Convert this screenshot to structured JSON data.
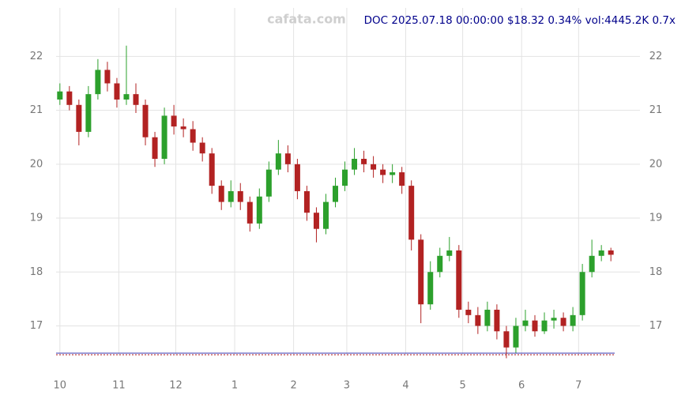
{
  "watermark": "cafata.com",
  "chart_data": {
    "type": "candlestick",
    "title": "DOC 2025.07.18 00:00:00 $18.32 0.34% vol:4445.2K 0.7x",
    "x": [
      0,
      5,
      10,
      15,
      20,
      25,
      30,
      35,
      40,
      45,
      50,
      55,
      60,
      65,
      70,
      75,
      80,
      85,
      90,
      95,
      100,
      105,
      110,
      115,
      120,
      125,
      130,
      135,
      140,
      145,
      150,
      155,
      160,
      165,
      170,
      175,
      180,
      185,
      190,
      195,
      200,
      205,
      210,
      215,
      220,
      225,
      230,
      235,
      240,
      245,
      250,
      255,
      260,
      265,
      270,
      275,
      280,
      285,
      290
    ],
    "open": [
      21.2,
      21.35,
      21.1,
      20.6,
      21.3,
      21.75,
      21.5,
      21.2,
      21.3,
      21.1,
      20.5,
      20.1,
      20.9,
      20.7,
      20.65,
      20.4,
      20.2,
      19.6,
      19.3,
      19.5,
      19.3,
      18.9,
      19.4,
      19.9,
      20.2,
      20.0,
      19.5,
      19.1,
      18.8,
      19.3,
      19.6,
      19.9,
      20.1,
      20.0,
      19.9,
      19.8,
      19.85,
      19.6,
      18.6,
      17.4,
      18.0,
      18.3,
      18.4,
      17.3,
      17.2,
      17.0,
      17.3,
      16.9,
      16.6,
      17.0,
      17.1,
      16.9,
      17.1,
      17.15,
      17.0,
      17.2,
      18.0,
      18.3,
      18.4
    ],
    "high": [
      21.5,
      21.45,
      21.2,
      21.45,
      21.95,
      21.9,
      21.6,
      22.2,
      21.5,
      21.2,
      20.6,
      21.05,
      21.1,
      20.85,
      20.8,
      20.5,
      20.3,
      19.7,
      19.7,
      19.65,
      19.4,
      19.55,
      20.05,
      20.45,
      20.35,
      20.1,
      19.6,
      19.2,
      19.45,
      19.75,
      20.05,
      20.3,
      20.25,
      20.15,
      20.0,
      20.0,
      19.95,
      19.7,
      18.7,
      18.2,
      18.45,
      18.65,
      18.5,
      17.45,
      17.35,
      17.45,
      17.4,
      17.0,
      17.15,
      17.3,
      17.2,
      17.25,
      17.3,
      17.25,
      17.35,
      18.15,
      18.6,
      18.5,
      18.45
    ],
    "low": [
      21.1,
      21.0,
      20.35,
      20.5,
      21.2,
      21.35,
      21.05,
      21.1,
      20.95,
      20.35,
      19.95,
      20.0,
      20.55,
      20.5,
      20.25,
      20.05,
      19.45,
      19.15,
      19.2,
      19.15,
      18.75,
      18.8,
      19.3,
      19.8,
      19.85,
      19.35,
      18.95,
      18.55,
      18.7,
      19.2,
      19.5,
      19.8,
      19.85,
      19.75,
      19.65,
      19.65,
      19.45,
      18.4,
      17.05,
      17.3,
      17.9,
      18.2,
      17.15,
      17.05,
      16.85,
      16.9,
      16.75,
      16.4,
      16.5,
      16.9,
      16.8,
      16.85,
      16.95,
      16.9,
      16.9,
      17.1,
      17.9,
      18.2,
      18.2
    ],
    "close": [
      21.35,
      21.1,
      20.6,
      21.3,
      21.75,
      21.5,
      21.2,
      21.3,
      21.1,
      20.5,
      20.1,
      20.9,
      20.7,
      20.65,
      20.4,
      20.2,
      19.6,
      19.3,
      19.5,
      19.3,
      18.9,
      19.4,
      19.9,
      20.2,
      20.0,
      19.5,
      19.1,
      18.8,
      19.3,
      19.6,
      19.9,
      20.1,
      20.0,
      19.9,
      19.8,
      19.85,
      19.6,
      18.6,
      17.4,
      18.0,
      18.3,
      18.4,
      17.3,
      17.2,
      17.0,
      17.3,
      16.9,
      16.6,
      17.0,
      17.1,
      16.9,
      17.1,
      17.15,
      17.0,
      17.2,
      18.0,
      18.3,
      18.4,
      18.32
    ],
    "up_color": "#2ca02c",
    "down_color": "#b22222",
    "xlim": [
      -2,
      292
    ],
    "ylim": [
      16.45,
      22.9
    ],
    "xticks": [
      {
        "value": 0,
        "label": "10"
      },
      {
        "value": 31,
        "label": "11"
      },
      {
        "value": 61,
        "label": "12"
      },
      {
        "value": 92,
        "label": "1"
      },
      {
        "value": 123,
        "label": "2"
      },
      {
        "value": 151,
        "label": "3"
      },
      {
        "value": 182,
        "label": "4"
      },
      {
        "value": 212,
        "label": "5"
      },
      {
        "value": 243,
        "label": "6"
      },
      {
        "value": 273,
        "label": "7"
      }
    ],
    "yticks": [
      17,
      18,
      19,
      20,
      21,
      22
    ],
    "grid": true
  }
}
